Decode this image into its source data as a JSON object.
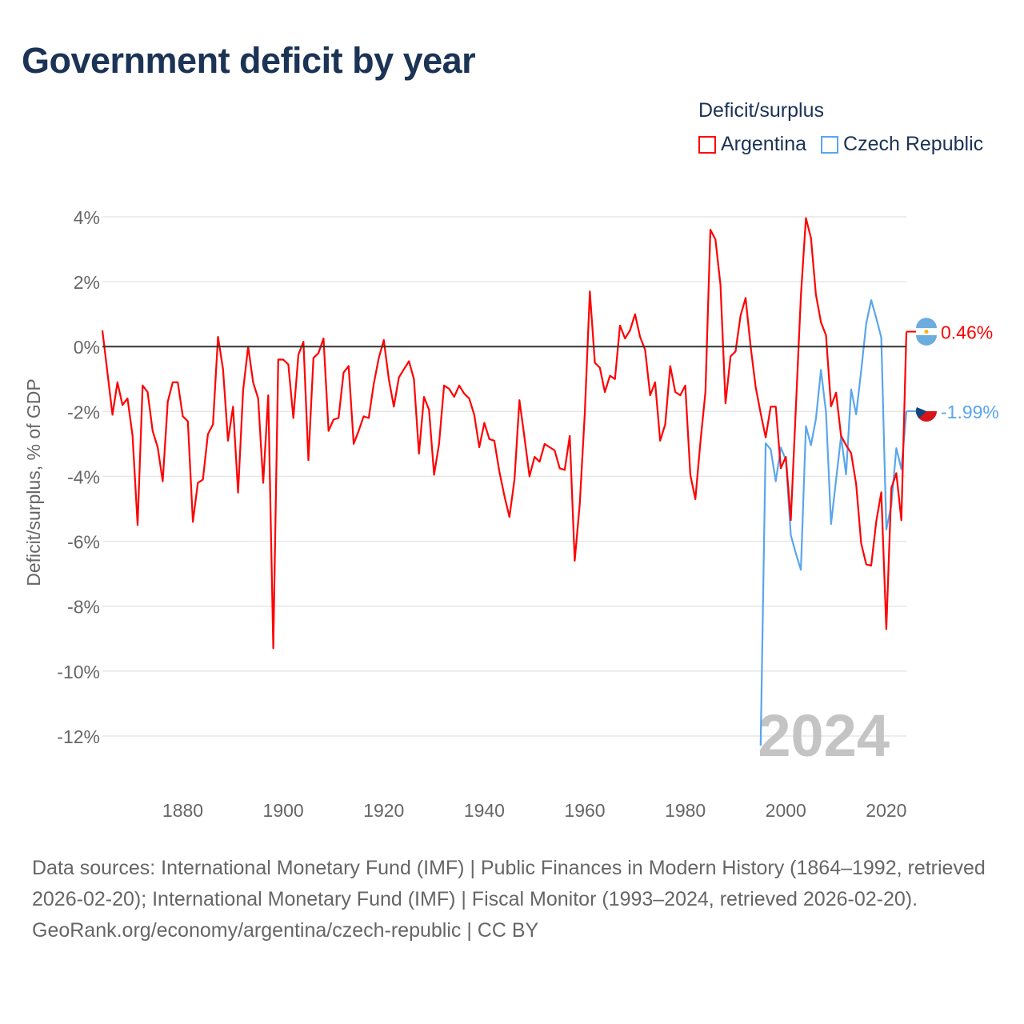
{
  "title": "Government deficit by year",
  "legend": {
    "title": "Deficit/surplus",
    "items": [
      {
        "label": "Argentina",
        "color": "#ff0000"
      },
      {
        "label": "Czech Republic",
        "color": "#5aa5ee"
      }
    ]
  },
  "watermark_year": "2024",
  "end_labels": {
    "argentina": "0.46%",
    "czech": "-1.99%"
  },
  "footer": {
    "sources": "Data sources: International Monetary Fund (IMF) | Public Finances in Modern History (1864–1992, retrieved 2026-02-20); International Monetary Fund (IMF) | Fiscal Monitor (1993–2024, retrieved 2026-02-20).",
    "credit": "GeoRank.org/economy/argentina/czech-republic | CC BY"
  },
  "chart_data": {
    "type": "line",
    "title": "Government deficit by year",
    "xlabel": "",
    "ylabel": "Deficit/surplus, % of GDP",
    "xlim": [
      1864,
      2024
    ],
    "ylim": [
      -12,
      4
    ],
    "y_ticks": [
      4,
      2,
      0,
      -2,
      -4,
      -6,
      -8,
      -10,
      -12
    ],
    "y_tick_labels": [
      "4%",
      "2%",
      "0%",
      "-2%",
      "-4%",
      "-6%",
      "-8%",
      "-10%",
      "-12%"
    ],
    "x_ticks": [
      1880,
      1900,
      1920,
      1940,
      1960,
      1980,
      2000,
      2020
    ],
    "x_tick_labels": [
      "1880",
      "1900",
      "1920",
      "1940",
      "1960",
      "1980",
      "2000",
      "2020"
    ],
    "grid": true,
    "legend_position": "top-right",
    "series": [
      {
        "name": "Argentina",
        "color": "#ff0000",
        "start_year": 1864,
        "values": [
          0.5,
          -0.8,
          -2.1,
          -1.1,
          -1.8,
          -1.6,
          -2.75,
          -5.5,
          -1.2,
          -1.4,
          -2.6,
          -3.1,
          -4.15,
          -1.7,
          -1.1,
          -1.1,
          -2.15,
          -2.3,
          -5.4,
          -4.2,
          -4.1,
          -2.7,
          -2.4,
          0.3,
          -0.7,
          -2.9,
          -1.85,
          -4.5,
          -1.35,
          0.0,
          -1.1,
          -1.6,
          -4.2,
          -1.5,
          -9.3,
          -0.4,
          -0.4,
          -0.55,
          -2.2,
          -0.25,
          0.15,
          -3.5,
          -0.35,
          -0.2,
          0.25,
          -2.6,
          -2.25,
          -2.2,
          -0.8,
          -0.6,
          -3.0,
          -2.6,
          -2.15,
          -2.2,
          -1.15,
          -0.35,
          0.2,
          -1.0,
          -1.85,
          -0.95,
          -0.7,
          -0.45,
          -1.0,
          -3.3,
          -1.55,
          -1.95,
          -3.95,
          -3.0,
          -1.2,
          -1.3,
          -1.55,
          -1.2,
          -1.45,
          -1.6,
          -2.1,
          -3.1,
          -2.35,
          -2.85,
          -2.9,
          -3.85,
          -4.6,
          -5.25,
          -4.1,
          -1.65,
          -2.8,
          -4.0,
          -3.4,
          -3.55,
          -3.0,
          -3.1,
          -3.2,
          -3.75,
          -3.8,
          -2.75,
          -6.6,
          -4.85,
          -2.05,
          1.7,
          -0.5,
          -0.65,
          -1.4,
          -0.9,
          -1.0,
          0.65,
          0.25,
          0.5,
          1.0,
          0.3,
          -0.1,
          -1.5,
          -1.1,
          -2.9,
          -2.4,
          -0.6,
          -1.4,
          -1.5,
          -1.2,
          -3.95,
          -4.7,
          -2.95,
          -1.4,
          3.6,
          3.3,
          1.9,
          -1.75,
          -0.3,
          -0.15,
          0.95,
          1.5,
          0.0,
          -1.25,
          -2.05,
          -2.8,
          -1.85,
          -1.85,
          -3.75,
          -3.4,
          -5.35,
          -1.9,
          1.56,
          3.96,
          3.35,
          1.6,
          0.75,
          0.35,
          -1.84,
          -1.42,
          -2.75,
          -3.04,
          -3.28,
          -4.24,
          -6.07,
          -6.71,
          -6.75,
          -5.39,
          -4.49,
          -8.71,
          -4.36,
          -3.9,
          -5.35,
          0.46
        ]
      },
      {
        "name": "Czech Republic",
        "color": "#5aa5ee",
        "start_year": 1995,
        "values": [
          -12.3,
          -2.98,
          -3.17,
          -4.15,
          -3.11,
          -3.49,
          -5.81,
          -6.37,
          -6.88,
          -2.45,
          -3.04,
          -2.23,
          -0.72,
          -2.02,
          -5.47,
          -4.11,
          -2.77,
          -3.94,
          -1.32,
          -2.09,
          -0.74,
          0.71,
          1.43,
          0.88,
          0.28,
          -5.64,
          -4.88,
          -3.13,
          -3.77,
          -1.99
        ]
      }
    ]
  }
}
